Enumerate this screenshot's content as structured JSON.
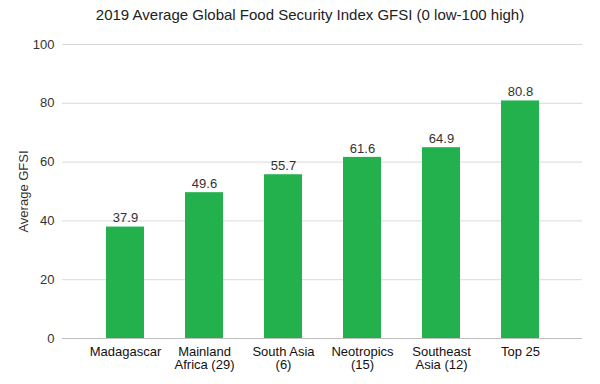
{
  "chart_data": {
    "type": "bar",
    "title": "2019 Average Global Food Security Index GFSI (0 low-100 high)",
    "y_label": "Average GFSI",
    "categories": [
      "Madagascar",
      "Mainland Africa (29)",
      "South Asia (6)",
      "Neotropics (15)",
      "Southeast Asia (12)",
      "Top 25"
    ],
    "values": [
      37.9,
      49.6,
      55.7,
      61.6,
      64.9,
      80.8
    ],
    "color": "#22b14c",
    "ylim": [
      0,
      100
    ],
    "yticks": [
      0,
      20,
      40,
      60,
      80,
      100
    ],
    "grid": true,
    "data_labels": true
  }
}
